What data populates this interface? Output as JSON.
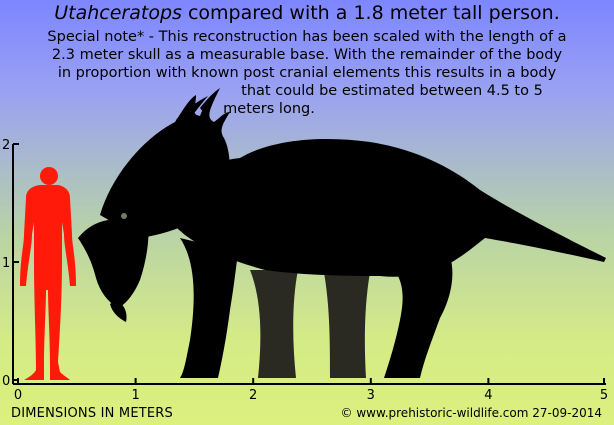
{
  "title": {
    "genus": "Utahceratops",
    "rest": " compared with a 1.8 meter tall person."
  },
  "note": {
    "lines": [
      "Special note* - This reconstruction has been scaled with the length of a",
      "2.3 meter skull as a measurable base. With the remainder of the body",
      "in proportion with known post cranial elements this results in a body",
      "that could be estimated between 4.5 to 5",
      "meters long."
    ]
  },
  "axes": {
    "x_ticks": [
      "0",
      "1",
      "2",
      "3",
      "4",
      "5"
    ],
    "y_ticks": [
      "2",
      "1",
      "0"
    ],
    "x_range": [
      0,
      5
    ],
    "y_range": [
      0,
      2
    ]
  },
  "footer": {
    "dimensions_label": "DIMENSIONS IN METERS",
    "credit": "© www.prehistoric-wildlife.com 27-09-2014"
  },
  "scale": {
    "human_height_m": 1.8,
    "dinosaur_length_m": 5
  },
  "colors": {
    "human": "#ff1a0a",
    "dinosaur": "#000000",
    "far_legs": "#2a2a22"
  }
}
